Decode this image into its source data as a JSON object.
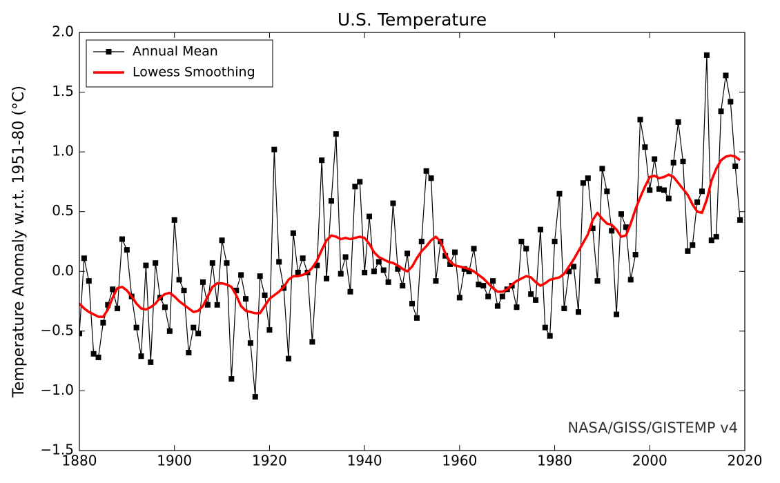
{
  "chart_data": {
    "type": "line",
    "title": "U.S. Temperature",
    "ylabel": "Temperature Anomaly w.r.t. 1951-80 (°C)",
    "annotation": "NASA/GISS/GISTEMP v4",
    "legend": "upper left",
    "grid": false,
    "xlim": [
      1880,
      2020
    ],
    "xticks": [
      1880,
      1900,
      1920,
      1940,
      1960,
      1980,
      2000,
      2020
    ],
    "ylim": [
      -1.5,
      2.0
    ],
    "yticks": [
      {
        "value": -1.5,
        "label": "−1.5"
      },
      {
        "value": -1.0,
        "label": "−1.0"
      },
      {
        "value": -0.5,
        "label": "−0.5"
      },
      {
        "value": 0,
        "label": "0.0"
      },
      0.5,
      {
        "value": 1.0,
        "label": "1.0"
      },
      1.5,
      {
        "value": 2.0,
        "label": "2.0"
      }
    ],
    "x": [
      1880,
      1881,
      1882,
      1883,
      1884,
      1885,
      1886,
      1887,
      1888,
      1889,
      1890,
      1891,
      1892,
      1893,
      1894,
      1895,
      1896,
      1897,
      1898,
      1899,
      1900,
      1901,
      1902,
      1903,
      1904,
      1905,
      1906,
      1907,
      1908,
      1909,
      1910,
      1911,
      1912,
      1913,
      1914,
      1915,
      1916,
      1917,
      1918,
      1919,
      1920,
      1921,
      1922,
      1923,
      1924,
      1925,
      1926,
      1927,
      1928,
      1929,
      1930,
      1931,
      1932,
      1933,
      1934,
      1935,
      1936,
      1937,
      1938,
      1939,
      1940,
      1941,
      1942,
      1943,
      1944,
      1945,
      1946,
      1947,
      1948,
      1949,
      1950,
      1951,
      1952,
      1953,
      1954,
      1955,
      1956,
      1957,
      1958,
      1959,
      1960,
      1961,
      1962,
      1963,
      1964,
      1965,
      1966,
      1967,
      1968,
      1969,
      1970,
      1971,
      1972,
      1973,
      1974,
      1975,
      1976,
      1977,
      1978,
      1979,
      1980,
      1981,
      1982,
      1983,
      1984,
      1985,
      1986,
      1987,
      1988,
      1989,
      1990,
      1991,
      1992,
      1993,
      1994,
      1995,
      1996,
      1997,
      1998,
      1999,
      2000,
      2001,
      2002,
      2003,
      2004,
      2005,
      2006,
      2007,
      2008,
      2009,
      2010,
      2011,
      2012,
      2013,
      2014,
      2015,
      2016,
      2017,
      2018,
      2019
    ],
    "series": [
      {
        "name": "Annual Mean",
        "color": "#000000",
        "marker": "square",
        "values": [
          -0.52,
          0.11,
          -0.08,
          -0.69,
          -0.72,
          -0.43,
          -0.28,
          -0.15,
          -0.31,
          0.27,
          0.18,
          -0.21,
          -0.47,
          -0.71,
          0.05,
          -0.76,
          0.07,
          -0.22,
          -0.3,
          -0.5,
          0.43,
          -0.07,
          -0.16,
          -0.68,
          -0.47,
          -0.52,
          -0.09,
          -0.28,
          0.07,
          -0.28,
          0.26,
          0.07,
          -0.9,
          -0.16,
          -0.03,
          -0.23,
          -0.6,
          -1.05,
          -0.04,
          -0.2,
          -0.49,
          1.02,
          0.08,
          -0.14,
          -0.73,
          0.32,
          -0.01,
          0.11,
          -0.01,
          -0.59,
          0.05,
          0.93,
          -0.06,
          0.59,
          1.15,
          -0.02,
          0.12,
          -0.17,
          0.71,
          0.75,
          -0.01,
          0.46,
          0.0,
          0.08,
          0.01,
          -0.09,
          0.57,
          0.02,
          -0.12,
          0.15,
          -0.27,
          -0.39,
          0.25,
          0.84,
          0.78,
          -0.08,
          0.25,
          0.13,
          0.06,
          0.16,
          -0.22,
          0.02,
          0.0,
          0.19,
          -0.11,
          -0.12,
          -0.21,
          -0.08,
          -0.29,
          -0.21,
          -0.15,
          -0.12,
          -0.3,
          0.25,
          0.19,
          -0.19,
          -0.24,
          0.35,
          -0.47,
          -0.54,
          0.25,
          0.65,
          -0.31,
          0.0,
          0.04,
          -0.34,
          0.74,
          0.78,
          0.36,
          -0.08,
          0.86,
          0.67,
          0.34,
          -0.36,
          0.48,
          0.37,
          -0.07,
          0.14,
          1.27,
          1.04,
          0.68,
          0.94,
          0.69,
          0.68,
          0.61,
          0.91,
          1.25,
          0.92,
          0.17,
          0.22,
          0.58,
          0.67,
          1.81,
          0.26,
          0.29,
          1.34,
          1.64,
          1.42,
          0.88,
          0.43
        ]
      },
      {
        "name": "Lowess Smoothing",
        "color": "#ff0000",
        "marker": "none",
        "values": [
          -0.27,
          -0.31,
          -0.34,
          -0.36,
          -0.38,
          -0.38,
          -0.32,
          -0.22,
          -0.14,
          -0.13,
          -0.16,
          -0.21,
          -0.27,
          -0.31,
          -0.32,
          -0.3,
          -0.27,
          -0.22,
          -0.19,
          -0.18,
          -0.21,
          -0.25,
          -0.28,
          -0.31,
          -0.34,
          -0.33,
          -0.29,
          -0.21,
          -0.13,
          -0.1,
          -0.1,
          -0.11,
          -0.13,
          -0.2,
          -0.29,
          -0.33,
          -0.34,
          -0.35,
          -0.35,
          -0.29,
          -0.23,
          -0.2,
          -0.17,
          -0.13,
          -0.07,
          -0.04,
          -0.04,
          -0.03,
          -0.01,
          0.03,
          0.09,
          0.18,
          0.26,
          0.3,
          0.29,
          0.27,
          0.28,
          0.27,
          0.28,
          0.29,
          0.28,
          0.23,
          0.16,
          0.12,
          0.1,
          0.08,
          0.07,
          0.05,
          0.02,
          0.0,
          0.04,
          0.11,
          0.17,
          0.21,
          0.26,
          0.29,
          0.25,
          0.15,
          0.08,
          0.05,
          0.04,
          0.03,
          0.02,
          0.0,
          -0.03,
          -0.06,
          -0.1,
          -0.14,
          -0.17,
          -0.17,
          -0.15,
          -0.11,
          -0.08,
          -0.06,
          -0.04,
          -0.05,
          -0.09,
          -0.12,
          -0.1,
          -0.07,
          -0.06,
          -0.05,
          -0.02,
          0.04,
          0.1,
          0.17,
          0.24,
          0.31,
          0.43,
          0.49,
          0.44,
          0.4,
          0.39,
          0.35,
          0.29,
          0.3,
          0.4,
          0.52,
          0.62,
          0.71,
          0.79,
          0.8,
          0.78,
          0.79,
          0.81,
          0.79,
          0.74,
          0.69,
          0.64,
          0.56,
          0.5,
          0.49,
          0.6,
          0.76,
          0.86,
          0.93,
          0.96,
          0.97,
          0.96,
          0.93
        ]
      }
    ]
  }
}
